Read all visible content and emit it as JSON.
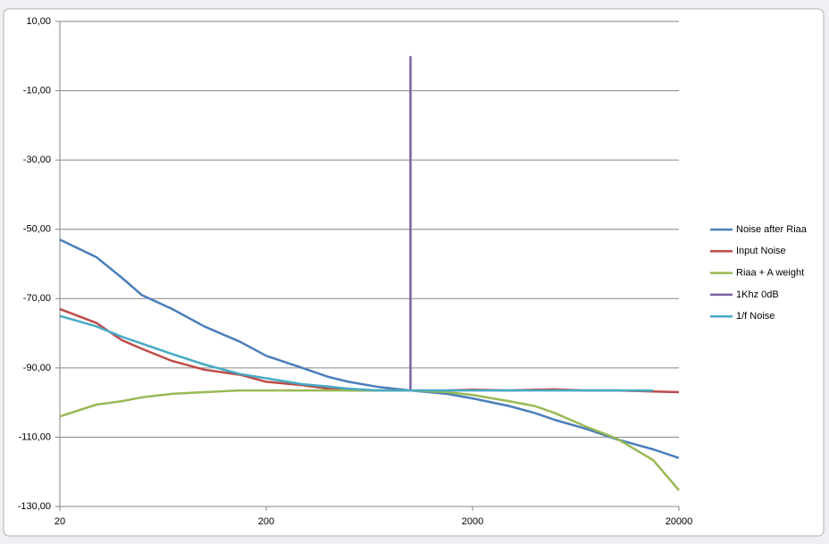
{
  "chart_data": {
    "type": "line",
    "x": [
      20,
      30,
      40,
      50,
      70,
      100,
      150,
      200,
      300,
      400,
      500,
      700,
      1000,
      1500,
      2000,
      3000,
      4000,
      5000,
      7000,
      10000,
      15000,
      20000
    ],
    "xlim": [
      20,
      20000
    ],
    "xticks": [
      20,
      200,
      2000,
      20000
    ],
    "xscale": "log",
    "ylim": [
      -130,
      10
    ],
    "yticks": [
      {
        "value": -130,
        "label": "-130,00"
      },
      {
        "value": -110,
        "label": "-110,00"
      },
      {
        "value": -90,
        "label": "-90,00"
      },
      {
        "value": -70,
        "label": "-70,00"
      },
      {
        "value": -50,
        "label": "-50,00"
      },
      {
        "value": -30,
        "label": "-30,00"
      },
      {
        "value": -10,
        "label": "-10,00"
      },
      {
        "value": 10,
        "label": "10,00"
      }
    ],
    "grid": true,
    "legend": "right",
    "series": [
      {
        "name": "Noise after Riaa",
        "color": "#4a7ebb",
        "values": [
          -53,
          -58,
          -64,
          -69,
          -73,
          -78,
          -82.5,
          -86.5,
          -90,
          -92.6,
          -94,
          -95.5,
          -96.5,
          -97.5,
          -98.8,
          -101,
          -103,
          -105,
          -107.5,
          -110.6,
          -113.5,
          -116
        ]
      },
      {
        "name": "Input Noise",
        "color": "#be4b48",
        "values": [
          -73,
          -77,
          -82,
          -84.5,
          -88,
          -90.5,
          -92,
          -94,
          -95,
          -96,
          -96.5,
          -96.5,
          -96.5,
          -96.5,
          -96.3,
          -96.5,
          -96.3,
          -96.2,
          -96.5,
          -96.5,
          -96.8,
          -97
        ]
      },
      {
        "name": "Riaa + A weight",
        "color": "#98b954",
        "values": [
          -104,
          -100.6,
          -99.6,
          -98.5,
          -97.5,
          -97,
          -96.5,
          -96.5,
          -96.5,
          -96.5,
          -96.5,
          -96.5,
          -96.5,
          -97,
          -97.8,
          -99.6,
          -101,
          -103,
          -106.8,
          -110.4,
          -116.6,
          -125.3
        ]
      },
      {
        "name": "1Khz 0dB",
        "color": "#7d60a0",
        "x": [
          1000,
          1000
        ],
        "values": [
          0,
          -96.5
        ]
      },
      {
        "name": "1/f Noise",
        "color": "#46aac5",
        "values": [
          -75,
          -78,
          -81,
          -83,
          -86,
          -89,
          -91.8,
          -93,
          -94.7,
          -95.4,
          -96,
          -96.5,
          -96.5,
          -96.5,
          -96.5,
          -96.5,
          -96.5,
          -96.5,
          -96.5,
          -96.5,
          -96.5,
          null
        ]
      }
    ]
  }
}
